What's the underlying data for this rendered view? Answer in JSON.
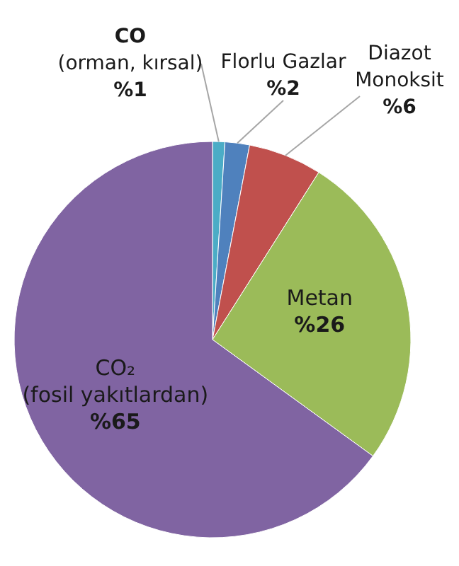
{
  "chart_data": {
    "type": "pie",
    "categories": [
      "CO (orman, kırsal)",
      "Florlu Gazlar",
      "Diazot Monoksit",
      "Metan",
      "CO₂ (fosil yakıtlardan)"
    ],
    "values": [
      1,
      2,
      6,
      26,
      65
    ],
    "value_labels": [
      "%1",
      "%2",
      "%6",
      "%26",
      "%65"
    ],
    "colors": [
      "#4bacc6",
      "#4f81bd",
      "#c0504d",
      "#9bbb59",
      "#8064a2"
    ]
  }
}
